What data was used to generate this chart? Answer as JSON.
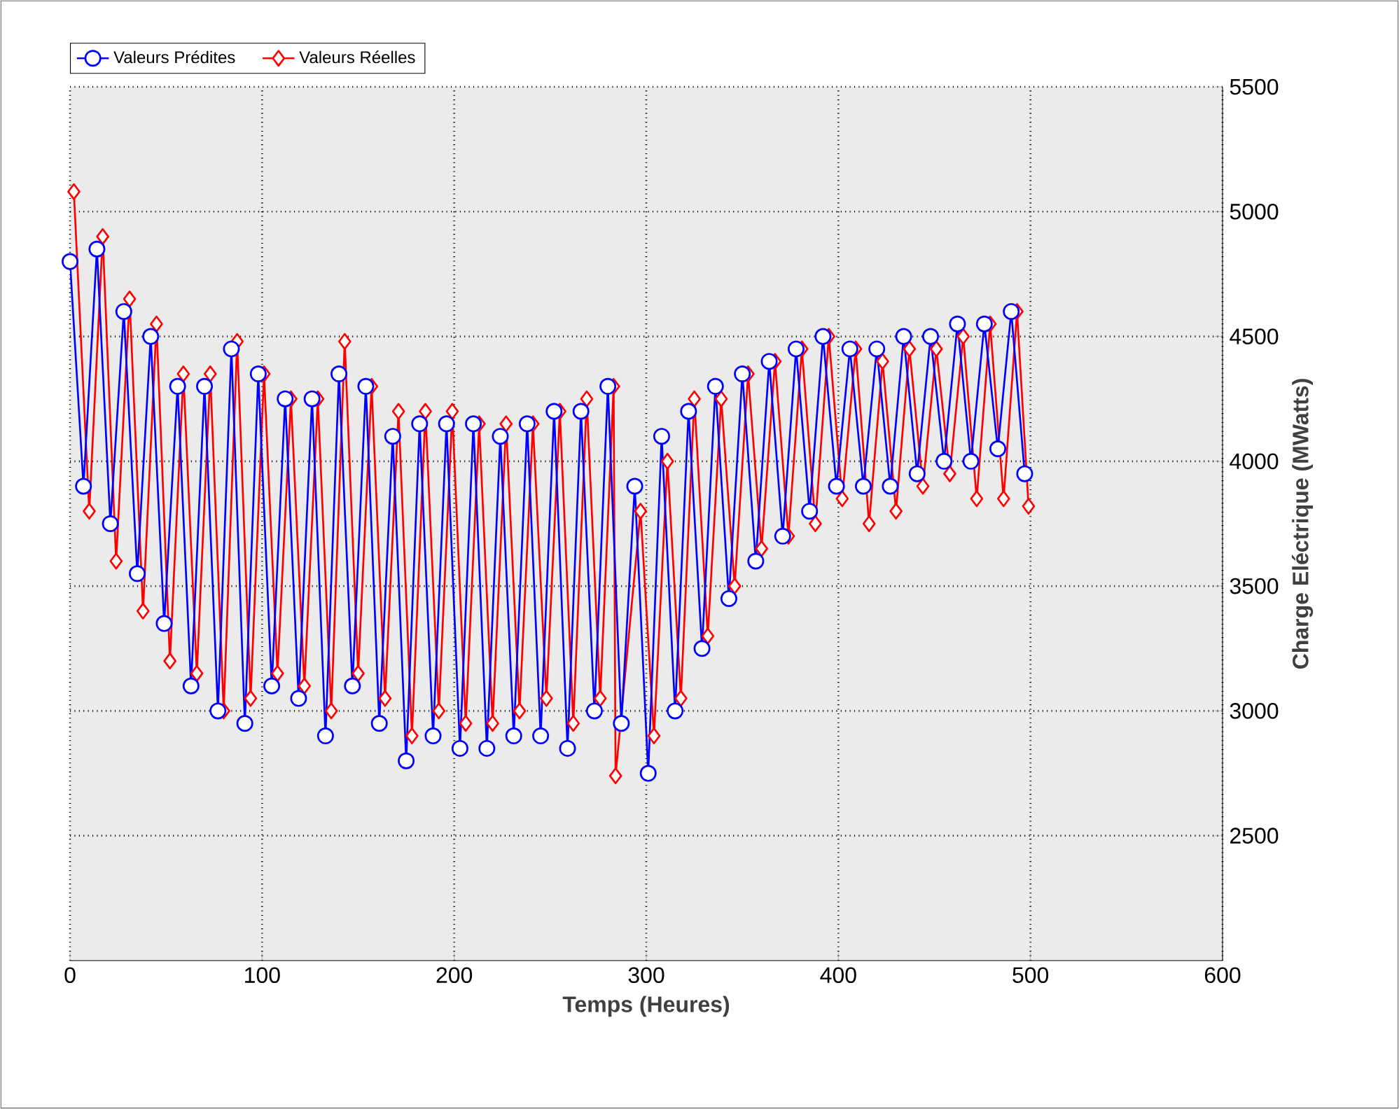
{
  "chart_data": {
    "type": "line",
    "xlabel": "Temps (Heures)",
    "ylabel": "Charge Eléctrique (MWatts)",
    "x": [
      0,
      7,
      14,
      21,
      28,
      35,
      42,
      49,
      56,
      63,
      70,
      77,
      84,
      91,
      98,
      105,
      112,
      119,
      126,
      133,
      140,
      147,
      154,
      161,
      168,
      175,
      182,
      189,
      196,
      203,
      210,
      217,
      224,
      231,
      238,
      245,
      252,
      259,
      266,
      273,
      280,
      287,
      294,
      301,
      308,
      315,
      322,
      329,
      336,
      343,
      350,
      357,
      364,
      371,
      378,
      385,
      392,
      399,
      406,
      413,
      420,
      427,
      434,
      441,
      448,
      455,
      462,
      469,
      476,
      483,
      490,
      497
    ],
    "series": [
      {
        "name": "Valeurs Prédites",
        "color": "#0000ff",
        "marker": "circle",
        "values": [
          4800,
          3900,
          4850,
          3750,
          4600,
          3550,
          4500,
          3350,
          4300,
          3100,
          4300,
          3000,
          4450,
          2950,
          4350,
          3100,
          4250,
          3050,
          4250,
          2900,
          4350,
          3100,
          4300,
          2950,
          4100,
          2800,
          4150,
          2900,
          4150,
          2850,
          4150,
          2850,
          4100,
          2900,
          4150,
          2900,
          4200,
          2850,
          4200,
          3000,
          4300,
          2950,
          3900,
          2750,
          4100,
          3000,
          4200,
          3250,
          4300,
          3450,
          4350,
          3600,
          4400,
          3700,
          4450,
          3800,
          4500,
          3900,
          4450,
          3900,
          4450,
          3900,
          4500,
          3950,
          4500,
          4000,
          4550,
          4000,
          4550,
          4050,
          4600,
          3950
        ]
      },
      {
        "name": "Valeurs Réelles",
        "color": "#ff0000",
        "marker": "diamond",
        "x": [
          2,
          10,
          17,
          24,
          31,
          38,
          45,
          52,
          59,
          66,
          73,
          80,
          87,
          94,
          101,
          108,
          115,
          122,
          129,
          136,
          143,
          150,
          157,
          164,
          171,
          178,
          185,
          192,
          199,
          206,
          213,
          220,
          227,
          234,
          241,
          248,
          255,
          262,
          269,
          276,
          283,
          284,
          297,
          304,
          311,
          318,
          325,
          332,
          339,
          346,
          353,
          360,
          367,
          374,
          381,
          388,
          395,
          402,
          409,
          416,
          423,
          430,
          437,
          444,
          451,
          458,
          465,
          472,
          479,
          486,
          493,
          499
        ],
        "values": [
          5080,
          3800,
          4900,
          3600,
          4650,
          3400,
          4550,
          3200,
          4350,
          3150,
          4350,
          3000,
          4480,
          3050,
          4350,
          3150,
          4250,
          3100,
          4250,
          3000,
          4480,
          3150,
          4300,
          3050,
          4200,
          2900,
          4200,
          3000,
          4200,
          2950,
          4150,
          2950,
          4150,
          3000,
          4150,
          3050,
          4200,
          2950,
          4250,
          3050,
          4300,
          2740,
          3800,
          2900,
          4000,
          3050,
          4250,
          3300,
          4250,
          3500,
          4350,
          3650,
          4400,
          3700,
          4450,
          3750,
          4500,
          3850,
          4450,
          3750,
          4400,
          3800,
          4450,
          3900,
          4450,
          3950,
          4500,
          3850,
          4550,
          3850,
          4600,
          3820
        ]
      }
    ],
    "xlim": [
      0,
      600
    ],
    "xticks": [
      0,
      100,
      200,
      300,
      400,
      500,
      600
    ],
    "ylim": [
      2000,
      5500
    ],
    "yticks": [
      2500,
      3000,
      3500,
      4000,
      4500,
      5000,
      5500
    ],
    "grid": true,
    "legend": "top left"
  }
}
